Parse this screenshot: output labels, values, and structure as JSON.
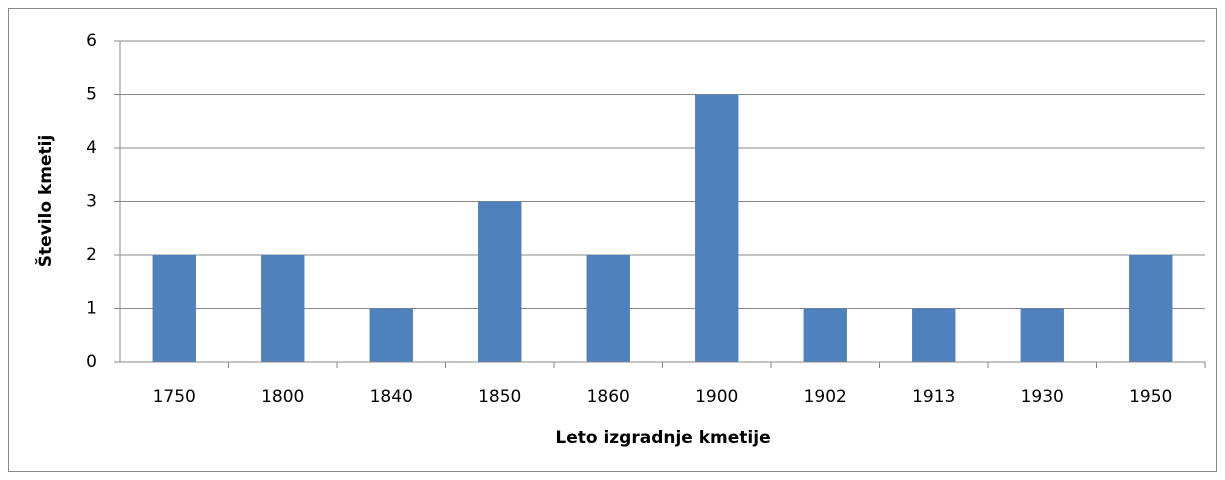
{
  "chart_data": {
    "type": "bar",
    "x_label": "Leto izgradnje kmetije",
    "y_label": "Število kmetij",
    "categories": [
      "1750",
      "1800",
      "1840",
      "1850",
      "1860",
      "1900",
      "1902",
      "1913",
      "1930",
      "1950"
    ],
    "values": [
      2,
      2,
      1,
      3,
      2,
      5,
      1,
      1,
      1,
      2
    ],
    "color": "#4f81bd",
    "ylim": [
      0,
      6
    ],
    "yticks": [
      0,
      1,
      2,
      3,
      4,
      5,
      6
    ],
    "grid": true
  }
}
